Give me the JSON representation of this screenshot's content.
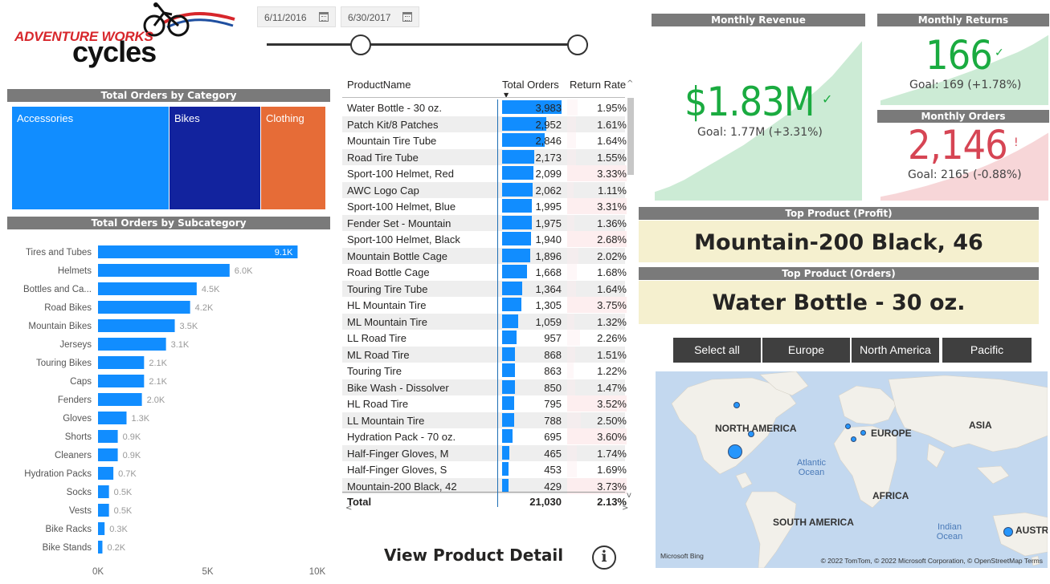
{
  "logo": {
    "line1": "ADVENTURE WORKS",
    "line2": "cycles"
  },
  "date_slicer": {
    "start": "6/11/2016",
    "end": "6/30/2017",
    "range_start_fraction": 0,
    "range_end_fraction": 1
  },
  "category_chart": {
    "title": "Total Orders by Category",
    "items": [
      {
        "label": "Accessories",
        "color": "#118dff"
      },
      {
        "label": "Bikes",
        "color": "#12239e"
      },
      {
        "label": "Clothing",
        "color": "#e66c37"
      }
    ]
  },
  "chart_data": {
    "type": "bar",
    "title": "Total Orders by Subcategory",
    "orientation": "horizontal",
    "categories": [
      "Tires and Tubes",
      "Helmets",
      "Bottles and Ca...",
      "Road Bikes",
      "Mountain Bikes",
      "Jerseys",
      "Touring Bikes",
      "Caps",
      "Fenders",
      "Gloves",
      "Shorts",
      "Cleaners",
      "Hydration Packs",
      "Socks",
      "Vests",
      "Bike Racks",
      "Bike Stands"
    ],
    "values": [
      9100,
      6000,
      4500,
      4200,
      3500,
      3100,
      2100,
      2100,
      2000,
      1300,
      900,
      900,
      700,
      500,
      500,
      300,
      200
    ],
    "value_labels": [
      "9.1K",
      "6.0K",
      "4.5K",
      "4.2K",
      "3.5K",
      "3.1K",
      "2.1K",
      "2.1K",
      "2.0K",
      "1.3K",
      "0.9K",
      "0.9K",
      "0.7K",
      "0.5K",
      "0.5K",
      "0.3K",
      "0.2K"
    ],
    "x_ticks": [
      "0K",
      "5K",
      "10K"
    ],
    "xlim": [
      0,
      10000
    ],
    "bar_color": "#118dff"
  },
  "product_table": {
    "columns": [
      "ProductName",
      "Total Orders",
      "Return Rate"
    ],
    "max_orders": 3983,
    "max_return_rate": 3.75,
    "rows": [
      {
        "name": "Water Bottle - 30 oz.",
        "orders": 3983,
        "orders_label": "3,983",
        "return_rate": 1.95,
        "return_label": "1.95%"
      },
      {
        "name": "Patch Kit/8 Patches",
        "orders": 2952,
        "orders_label": "2,952",
        "return_rate": 1.61,
        "return_label": "1.61%"
      },
      {
        "name": "Mountain Tire Tube",
        "orders": 2846,
        "orders_label": "2,846",
        "return_rate": 1.64,
        "return_label": "1.64%"
      },
      {
        "name": "Road Tire Tube",
        "orders": 2173,
        "orders_label": "2,173",
        "return_rate": 1.55,
        "return_label": "1.55%"
      },
      {
        "name": "Sport-100 Helmet, Red",
        "orders": 2099,
        "orders_label": "2,099",
        "return_rate": 3.33,
        "return_label": "3.33%"
      },
      {
        "name": "AWC Logo Cap",
        "orders": 2062,
        "orders_label": "2,062",
        "return_rate": 1.11,
        "return_label": "1.11%"
      },
      {
        "name": "Sport-100 Helmet, Blue",
        "orders": 1995,
        "orders_label": "1,995",
        "return_rate": 3.31,
        "return_label": "3.31%"
      },
      {
        "name": "Fender Set - Mountain",
        "orders": 1975,
        "orders_label": "1,975",
        "return_rate": 1.36,
        "return_label": "1.36%"
      },
      {
        "name": "Sport-100 Helmet, Black",
        "orders": 1940,
        "orders_label": "1,940",
        "return_rate": 2.68,
        "return_label": "2.68%"
      },
      {
        "name": "Mountain Bottle Cage",
        "orders": 1896,
        "orders_label": "1,896",
        "return_rate": 2.02,
        "return_label": "2.02%"
      },
      {
        "name": "Road Bottle Cage",
        "orders": 1668,
        "orders_label": "1,668",
        "return_rate": 1.68,
        "return_label": "1.68%"
      },
      {
        "name": "Touring Tire Tube",
        "orders": 1364,
        "orders_label": "1,364",
        "return_rate": 1.64,
        "return_label": "1.64%"
      },
      {
        "name": "HL Mountain Tire",
        "orders": 1305,
        "orders_label": "1,305",
        "return_rate": 3.75,
        "return_label": "3.75%"
      },
      {
        "name": "ML Mountain Tire",
        "orders": 1059,
        "orders_label": "1,059",
        "return_rate": 1.32,
        "return_label": "1.32%"
      },
      {
        "name": "LL Road Tire",
        "orders": 957,
        "orders_label": "957",
        "return_rate": 2.26,
        "return_label": "2.26%"
      },
      {
        "name": "ML Road Tire",
        "orders": 868,
        "orders_label": "868",
        "return_rate": 1.51,
        "return_label": "1.51%"
      },
      {
        "name": "Touring Tire",
        "orders": 863,
        "orders_label": "863",
        "return_rate": 1.22,
        "return_label": "1.22%"
      },
      {
        "name": "Bike Wash - Dissolver",
        "orders": 850,
        "orders_label": "850",
        "return_rate": 1.47,
        "return_label": "1.47%"
      },
      {
        "name": "HL Road Tire",
        "orders": 795,
        "orders_label": "795",
        "return_rate": 3.52,
        "return_label": "3.52%"
      },
      {
        "name": "LL Mountain Tire",
        "orders": 788,
        "orders_label": "788",
        "return_rate": 2.5,
        "return_label": "2.50%"
      },
      {
        "name": "Hydration Pack - 70 oz.",
        "orders": 695,
        "orders_label": "695",
        "return_rate": 3.6,
        "return_label": "3.60%"
      },
      {
        "name": "Half-Finger Gloves, M",
        "orders": 465,
        "orders_label": "465",
        "return_rate": 1.74,
        "return_label": "1.74%"
      },
      {
        "name": "Half-Finger Gloves, S",
        "orders": 453,
        "orders_label": "453",
        "return_rate": 1.69,
        "return_label": "1.69%"
      },
      {
        "name": "Mountain-200 Black, 42",
        "orders": 429,
        "orders_label": "429",
        "return_rate": 3.73,
        "return_label": "3.73%"
      }
    ],
    "total": {
      "label": "Total",
      "orders": "21,030",
      "return_rate": "2.13%"
    }
  },
  "view_detail": {
    "label": "View Product Detail",
    "info_icon": "i"
  },
  "kpis": {
    "revenue": {
      "title": "Monthly Revenue",
      "value": "$1.83M",
      "goal": "Goal: 1.77M (+3.31%)",
      "status": "✓",
      "color": "#1aab40",
      "trend": [
        0.05,
        0.08,
        0.12,
        0.17,
        0.22,
        0.27,
        0.32,
        0.38,
        0.44,
        0.5,
        0.57,
        0.64,
        0.72,
        0.82,
        0.92
      ]
    },
    "returns": {
      "title": "Monthly Returns",
      "value": "166",
      "goal": "Goal: 169 (+1.78%)",
      "status": "✓",
      "color": "#1aab40",
      "trend": [
        0.06,
        0.12,
        0.18,
        0.24,
        0.3,
        0.37,
        0.44,
        0.52,
        0.6,
        0.68,
        0.78,
        0.9
      ]
    },
    "orders": {
      "title": "Monthly Orders",
      "value": "2,146",
      "goal": "Goal: 2165 (-0.88%)",
      "status": "!",
      "color": "#d64554",
      "trend": [
        0.05,
        0.09,
        0.14,
        0.19,
        0.25,
        0.31,
        0.38,
        0.46,
        0.55,
        0.65,
        0.76,
        0.88
      ]
    }
  },
  "top_products": {
    "profit": {
      "title": "Top Product (Profit)",
      "value": "Mountain-200 Black, 46"
    },
    "orders": {
      "title": "Top Product (Orders)",
      "value": "Water Bottle - 30 oz."
    }
  },
  "region_slicer": {
    "options": [
      "Select all",
      "Europe",
      "North America",
      "Pacific"
    ]
  },
  "map": {
    "continents": [
      "NORTH AMERICA",
      "EUROPE",
      "ASIA",
      "AFRICA",
      "SOUTH AMERICA",
      "AUSTRALI"
    ],
    "oceans": {
      "atlantic": "Atlantic Ocean",
      "indian": "Indian Ocean"
    },
    "bing": "Microsoft Bing",
    "credits": "© 2022 TomTom, © 2022 Microsoft Corporation, © OpenStreetMap  Terms"
  }
}
